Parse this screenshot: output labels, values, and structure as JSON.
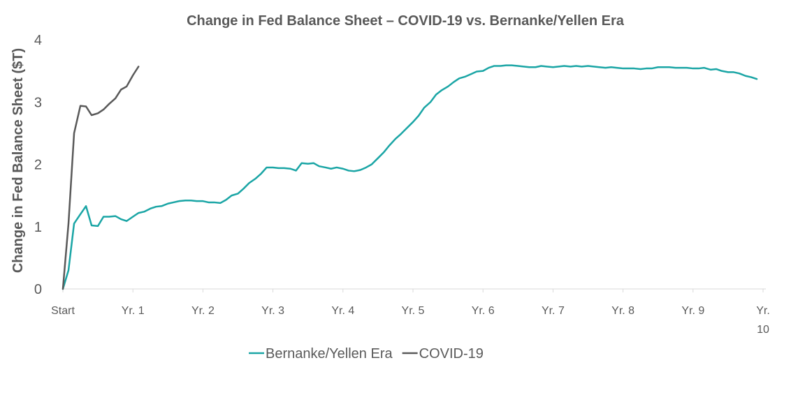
{
  "chart_data": {
    "type": "line",
    "title": "Change in Fed Balance Sheet – COVID-19 vs. Bernanke/Yellen Era",
    "xlabel": "",
    "ylabel": "Change in Fed Balance Sheet ($T)",
    "ylim": [
      0,
      4
    ],
    "yticks": [
      "0",
      "1",
      "2",
      "3",
      "4"
    ],
    "xlim": [
      0,
      10
    ],
    "xticks": [
      {
        "x": 0,
        "label": "Start"
      },
      {
        "x": 1,
        "label": "Yr. 1"
      },
      {
        "x": 2,
        "label": "Yr. 2"
      },
      {
        "x": 3,
        "label": "Yr. 3"
      },
      {
        "x": 4,
        "label": "Yr. 4"
      },
      {
        "x": 5,
        "label": "Yr. 5"
      },
      {
        "x": 6,
        "label": "Yr. 6"
      },
      {
        "x": 7,
        "label": "Yr. 7"
      },
      {
        "x": 8,
        "label": "Yr. 8"
      },
      {
        "x": 9,
        "label": "Yr. 9"
      },
      {
        "x": 10,
        "label": "Yr. 10"
      }
    ],
    "grid": false,
    "legend_position": "bottom",
    "series": [
      {
        "name": "Bernanke/Yellen Era",
        "color": "#1aa5a5",
        "points": [
          [
            0,
            0
          ],
          [
            0.08,
            0.3
          ],
          [
            0.16,
            1.05
          ],
          [
            0.25,
            1.2
          ],
          [
            0.33,
            1.33
          ],
          [
            0.41,
            1.02
          ],
          [
            0.5,
            1.01
          ],
          [
            0.58,
            1.16
          ],
          [
            0.66,
            1.16
          ],
          [
            0.75,
            1.17
          ],
          [
            0.83,
            1.12
          ],
          [
            0.91,
            1.09
          ],
          [
            1.0,
            1.16
          ],
          [
            1.08,
            1.22
          ],
          [
            1.16,
            1.24
          ],
          [
            1.25,
            1.29
          ],
          [
            1.33,
            1.32
          ],
          [
            1.41,
            1.33
          ],
          [
            1.5,
            1.37
          ],
          [
            1.58,
            1.39
          ],
          [
            1.66,
            1.41
          ],
          [
            1.75,
            1.42
          ],
          [
            1.83,
            1.42
          ],
          [
            1.91,
            1.41
          ],
          [
            2.0,
            1.41
          ],
          [
            2.08,
            1.39
          ],
          [
            2.16,
            1.39
          ],
          [
            2.25,
            1.38
          ],
          [
            2.33,
            1.43
          ],
          [
            2.41,
            1.5
          ],
          [
            2.5,
            1.53
          ],
          [
            2.58,
            1.61
          ],
          [
            2.66,
            1.7
          ],
          [
            2.75,
            1.77
          ],
          [
            2.83,
            1.85
          ],
          [
            2.91,
            1.95
          ],
          [
            3.0,
            1.95
          ],
          [
            3.08,
            1.94
          ],
          [
            3.16,
            1.94
          ],
          [
            3.25,
            1.93
          ],
          [
            3.33,
            1.9
          ],
          [
            3.41,
            2.02
          ],
          [
            3.5,
            2.01
          ],
          [
            3.58,
            2.02
          ],
          [
            3.66,
            1.97
          ],
          [
            3.75,
            1.95
          ],
          [
            3.83,
            1.93
          ],
          [
            3.91,
            1.95
          ],
          [
            4.0,
            1.93
          ],
          [
            4.08,
            1.9
          ],
          [
            4.16,
            1.89
          ],
          [
            4.25,
            1.91
          ],
          [
            4.33,
            1.95
          ],
          [
            4.41,
            2.0
          ],
          [
            4.5,
            2.1
          ],
          [
            4.58,
            2.19
          ],
          [
            4.66,
            2.3
          ],
          [
            4.75,
            2.41
          ],
          [
            4.83,
            2.49
          ],
          [
            4.91,
            2.58
          ],
          [
            5.0,
            2.68
          ],
          [
            5.08,
            2.78
          ],
          [
            5.16,
            2.91
          ],
          [
            5.25,
            3.0
          ],
          [
            5.33,
            3.12
          ],
          [
            5.41,
            3.19
          ],
          [
            5.5,
            3.25
          ],
          [
            5.58,
            3.32
          ],
          [
            5.66,
            3.38
          ],
          [
            5.75,
            3.41
          ],
          [
            5.83,
            3.45
          ],
          [
            5.91,
            3.49
          ],
          [
            6.0,
            3.5
          ],
          [
            6.08,
            3.55
          ],
          [
            6.16,
            3.58
          ],
          [
            6.25,
            3.58
          ],
          [
            6.33,
            3.59
          ],
          [
            6.41,
            3.59
          ],
          [
            6.5,
            3.58
          ],
          [
            6.58,
            3.57
          ],
          [
            6.66,
            3.56
          ],
          [
            6.75,
            3.56
          ],
          [
            6.83,
            3.58
          ],
          [
            6.91,
            3.57
          ],
          [
            7.0,
            3.56
          ],
          [
            7.08,
            3.57
          ],
          [
            7.16,
            3.58
          ],
          [
            7.25,
            3.57
          ],
          [
            7.33,
            3.58
          ],
          [
            7.41,
            3.57
          ],
          [
            7.5,
            3.58
          ],
          [
            7.58,
            3.57
          ],
          [
            7.66,
            3.56
          ],
          [
            7.75,
            3.55
          ],
          [
            7.83,
            3.56
          ],
          [
            7.91,
            3.55
          ],
          [
            8.0,
            3.54
          ],
          [
            8.08,
            3.54
          ],
          [
            8.16,
            3.54
          ],
          [
            8.25,
            3.53
          ],
          [
            8.33,
            3.54
          ],
          [
            8.41,
            3.54
          ],
          [
            8.5,
            3.56
          ],
          [
            8.58,
            3.56
          ],
          [
            8.66,
            3.56
          ],
          [
            8.75,
            3.55
          ],
          [
            8.83,
            3.55
          ],
          [
            8.91,
            3.55
          ],
          [
            9.0,
            3.54
          ],
          [
            9.08,
            3.54
          ],
          [
            9.16,
            3.55
          ],
          [
            9.25,
            3.52
          ],
          [
            9.33,
            3.53
          ],
          [
            9.41,
            3.5
          ],
          [
            9.5,
            3.48
          ],
          [
            9.58,
            3.48
          ],
          [
            9.66,
            3.46
          ],
          [
            9.75,
            3.42
          ],
          [
            9.83,
            3.4
          ],
          [
            9.91,
            3.37
          ]
        ]
      },
      {
        "name": "COVID-19",
        "color": "#595959",
        "points": [
          [
            0,
            0
          ],
          [
            0.08,
            1.05
          ],
          [
            0.16,
            2.5
          ],
          [
            0.25,
            2.94
          ],
          [
            0.33,
            2.93
          ],
          [
            0.41,
            2.79
          ],
          [
            0.5,
            2.82
          ],
          [
            0.58,
            2.88
          ],
          [
            0.66,
            2.97
          ],
          [
            0.75,
            3.06
          ],
          [
            0.83,
            3.2
          ],
          [
            0.91,
            3.25
          ],
          [
            1.0,
            3.43
          ],
          [
            1.08,
            3.57
          ]
        ]
      }
    ]
  }
}
